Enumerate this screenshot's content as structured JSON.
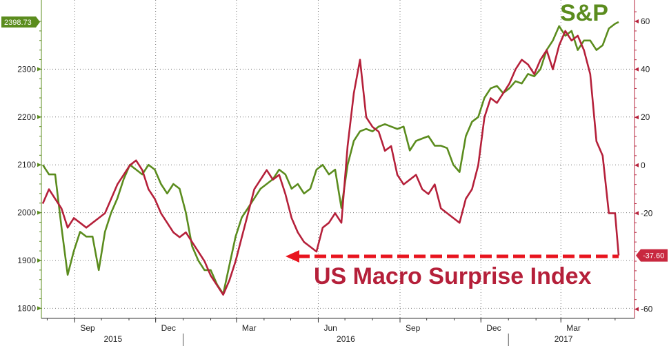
{
  "chart_data": {
    "type": "line",
    "x_axis": {
      "months": [
        "Sep",
        "Dec",
        "Mar",
        "Jun",
        "Sep",
        "Dec",
        "Mar"
      ],
      "years": [
        "2015",
        "2016",
        "2017"
      ],
      "range": [
        "2015-07-27",
        "2017-05-05"
      ]
    },
    "y_left": {
      "range": [
        1780,
        2400
      ],
      "ticks": [
        "1800",
        "1900",
        "2000",
        "2100",
        "2200",
        "2300"
      ]
    },
    "y_right": {
      "range": [
        -63,
        70
      ],
      "ticks": [
        "-60",
        "-20",
        "0",
        "20",
        "40",
        "60"
      ]
    },
    "grid": true,
    "series": [
      {
        "name": "S&P",
        "axis": "left",
        "color": "#5b8c1e",
        "points": [
          [
            "2015-07-27",
            2100
          ],
          [
            "2015-08-03",
            2080
          ],
          [
            "2015-08-10",
            2080
          ],
          [
            "2015-08-17",
            1970
          ],
          [
            "2015-08-24",
            1870
          ],
          [
            "2015-08-31",
            1920
          ],
          [
            "2015-09-07",
            1960
          ],
          [
            "2015-09-14",
            1950
          ],
          [
            "2015-09-21",
            1950
          ],
          [
            "2015-09-28",
            1880
          ],
          [
            "2015-10-05",
            1960
          ],
          [
            "2015-10-12",
            2000
          ],
          [
            "2015-10-19",
            2030
          ],
          [
            "2015-10-26",
            2070
          ],
          [
            "2015-11-02",
            2100
          ],
          [
            "2015-11-09",
            2090
          ],
          [
            "2015-11-16",
            2080
          ],
          [
            "2015-11-23",
            2100
          ],
          [
            "2015-11-30",
            2090
          ],
          [
            "2015-12-07",
            2060
          ],
          [
            "2015-12-14",
            2040
          ],
          [
            "2015-12-21",
            2060
          ],
          [
            "2015-12-28",
            2050
          ],
          [
            "2016-01-04",
            2000
          ],
          [
            "2016-01-11",
            1930
          ],
          [
            "2016-01-18",
            1900
          ],
          [
            "2016-01-25",
            1880
          ],
          [
            "2016-02-01",
            1880
          ],
          [
            "2016-02-08",
            1850
          ],
          [
            "2016-02-15",
            1830
          ],
          [
            "2016-02-22",
            1890
          ],
          [
            "2016-02-29",
            1950
          ],
          [
            "2016-03-07",
            1990
          ],
          [
            "2016-03-14",
            2010
          ],
          [
            "2016-03-21",
            2030
          ],
          [
            "2016-03-28",
            2050
          ],
          [
            "2016-04-04",
            2060
          ],
          [
            "2016-04-11",
            2070
          ],
          [
            "2016-04-18",
            2090
          ],
          [
            "2016-04-25",
            2080
          ],
          [
            "2016-05-02",
            2050
          ],
          [
            "2016-05-09",
            2060
          ],
          [
            "2016-05-16",
            2040
          ],
          [
            "2016-05-23",
            2050
          ],
          [
            "2016-05-30",
            2090
          ],
          [
            "2016-06-06",
            2100
          ],
          [
            "2016-06-13",
            2080
          ],
          [
            "2016-06-20",
            2090
          ],
          [
            "2016-06-27",
            2010
          ],
          [
            "2016-07-04",
            2100
          ],
          [
            "2016-07-11",
            2150
          ],
          [
            "2016-07-18",
            2170
          ],
          [
            "2016-07-25",
            2175
          ],
          [
            "2016-08-01",
            2170
          ],
          [
            "2016-08-08",
            2180
          ],
          [
            "2016-08-15",
            2185
          ],
          [
            "2016-08-22",
            2180
          ],
          [
            "2016-08-29",
            2175
          ],
          [
            "2016-09-05",
            2180
          ],
          [
            "2016-09-12",
            2130
          ],
          [
            "2016-09-19",
            2150
          ],
          [
            "2016-09-26",
            2155
          ],
          [
            "2016-10-03",
            2160
          ],
          [
            "2016-10-10",
            2140
          ],
          [
            "2016-10-17",
            2140
          ],
          [
            "2016-10-24",
            2135
          ],
          [
            "2016-10-31",
            2100
          ],
          [
            "2016-11-07",
            2085
          ],
          [
            "2016-11-14",
            2160
          ],
          [
            "2016-11-21",
            2190
          ],
          [
            "2016-11-28",
            2200
          ],
          [
            "2016-12-05",
            2240
          ],
          [
            "2016-12-12",
            2260
          ],
          [
            "2016-12-19",
            2265
          ],
          [
            "2016-12-26",
            2250
          ],
          [
            "2017-01-02",
            2260
          ],
          [
            "2017-01-09",
            2275
          ],
          [
            "2017-01-16",
            2270
          ],
          [
            "2017-01-23",
            2290
          ],
          [
            "2017-01-30",
            2285
          ],
          [
            "2017-02-06",
            2300
          ],
          [
            "2017-02-13",
            2340
          ],
          [
            "2017-02-20",
            2360
          ],
          [
            "2017-02-27",
            2390
          ],
          [
            "2017-03-06",
            2370
          ],
          [
            "2017-03-13",
            2380
          ],
          [
            "2017-03-20",
            2340
          ],
          [
            "2017-03-27",
            2360
          ],
          [
            "2017-04-03",
            2360
          ],
          [
            "2017-04-10",
            2340
          ],
          [
            "2017-04-17",
            2350
          ],
          [
            "2017-04-24",
            2385
          ],
          [
            "2017-05-01",
            2395
          ],
          [
            "2017-05-05",
            2398.73
          ]
        ]
      },
      {
        "name": "US Macro Surprise Index",
        "axis": "right",
        "color": "#b5203a",
        "points": [
          [
            "2015-07-27",
            -16
          ],
          [
            "2015-08-03",
            -10
          ],
          [
            "2015-08-10",
            -14
          ],
          [
            "2015-08-17",
            -18
          ],
          [
            "2015-08-24",
            -26
          ],
          [
            "2015-08-31",
            -22
          ],
          [
            "2015-09-07",
            -24
          ],
          [
            "2015-09-14",
            -26
          ],
          [
            "2015-09-21",
            -24
          ],
          [
            "2015-09-28",
            -22
          ],
          [
            "2015-10-05",
            -20
          ],
          [
            "2015-10-12",
            -14
          ],
          [
            "2015-10-19",
            -8
          ],
          [
            "2015-10-26",
            -4
          ],
          [
            "2015-11-02",
            0
          ],
          [
            "2015-11-09",
            2
          ],
          [
            "2015-11-16",
            -2
          ],
          [
            "2015-11-23",
            -10
          ],
          [
            "2015-11-30",
            -14
          ],
          [
            "2015-12-07",
            -20
          ],
          [
            "2015-12-14",
            -24
          ],
          [
            "2015-12-21",
            -28
          ],
          [
            "2015-12-28",
            -30
          ],
          [
            "2016-01-04",
            -28
          ],
          [
            "2016-01-11",
            -32
          ],
          [
            "2016-01-18",
            -36
          ],
          [
            "2016-01-25",
            -40
          ],
          [
            "2016-02-01",
            -46
          ],
          [
            "2016-02-08",
            -50
          ],
          [
            "2016-02-15",
            -54
          ],
          [
            "2016-02-22",
            -48
          ],
          [
            "2016-02-29",
            -40
          ],
          [
            "2016-03-07",
            -30
          ],
          [
            "2016-03-14",
            -20
          ],
          [
            "2016-03-21",
            -10
          ],
          [
            "2016-03-28",
            -6
          ],
          [
            "2016-04-04",
            -2
          ],
          [
            "2016-04-11",
            -6
          ],
          [
            "2016-04-18",
            -4
          ],
          [
            "2016-04-25",
            -12
          ],
          [
            "2016-05-02",
            -22
          ],
          [
            "2016-05-09",
            -28
          ],
          [
            "2016-05-16",
            -32
          ],
          [
            "2016-05-23",
            -34
          ],
          [
            "2016-05-30",
            -36
          ],
          [
            "2016-06-06",
            -26
          ],
          [
            "2016-06-13",
            -24
          ],
          [
            "2016-06-20",
            -20
          ],
          [
            "2016-06-27",
            -24
          ],
          [
            "2016-07-04",
            8
          ],
          [
            "2016-07-11",
            30
          ],
          [
            "2016-07-18",
            44
          ],
          [
            "2016-07-25",
            20
          ],
          [
            "2016-08-01",
            16
          ],
          [
            "2016-08-08",
            14
          ],
          [
            "2016-08-15",
            6
          ],
          [
            "2016-08-22",
            8
          ],
          [
            "2016-08-29",
            -4
          ],
          [
            "2016-09-05",
            -8
          ],
          [
            "2016-09-12",
            -6
          ],
          [
            "2016-09-19",
            -4
          ],
          [
            "2016-09-26",
            -10
          ],
          [
            "2016-10-03",
            -12
          ],
          [
            "2016-10-10",
            -8
          ],
          [
            "2016-10-17",
            -18
          ],
          [
            "2016-10-24",
            -20
          ],
          [
            "2016-10-31",
            -22
          ],
          [
            "2016-11-07",
            -24
          ],
          [
            "2016-11-14",
            -14
          ],
          [
            "2016-11-21",
            -10
          ],
          [
            "2016-11-28",
            0
          ],
          [
            "2016-12-05",
            20
          ],
          [
            "2016-12-12",
            28
          ],
          [
            "2016-12-19",
            26
          ],
          [
            "2016-12-26",
            30
          ],
          [
            "2017-01-02",
            34
          ],
          [
            "2017-01-09",
            40
          ],
          [
            "2017-01-16",
            44
          ],
          [
            "2017-01-23",
            42
          ],
          [
            "2017-01-30",
            38
          ],
          [
            "2017-02-06",
            44
          ],
          [
            "2017-02-13",
            48
          ],
          [
            "2017-02-20",
            40
          ],
          [
            "2017-02-27",
            50
          ],
          [
            "2017-03-06",
            56
          ],
          [
            "2017-03-13",
            52
          ],
          [
            "2017-03-20",
            54
          ],
          [
            "2017-03-27",
            48
          ],
          [
            "2017-04-03",
            38
          ],
          [
            "2017-04-10",
            10
          ],
          [
            "2017-04-17",
            4
          ],
          [
            "2017-04-24",
            -20
          ],
          [
            "2017-05-01",
            -20
          ],
          [
            "2017-05-05",
            -37.6
          ]
        ]
      }
    ],
    "last_values": {
      "sp": "2398.73",
      "surprise": "-37.60"
    },
    "annotations": {
      "sp_label": "S&P",
      "surprise_label": "US Macro Surprise Index"
    }
  }
}
